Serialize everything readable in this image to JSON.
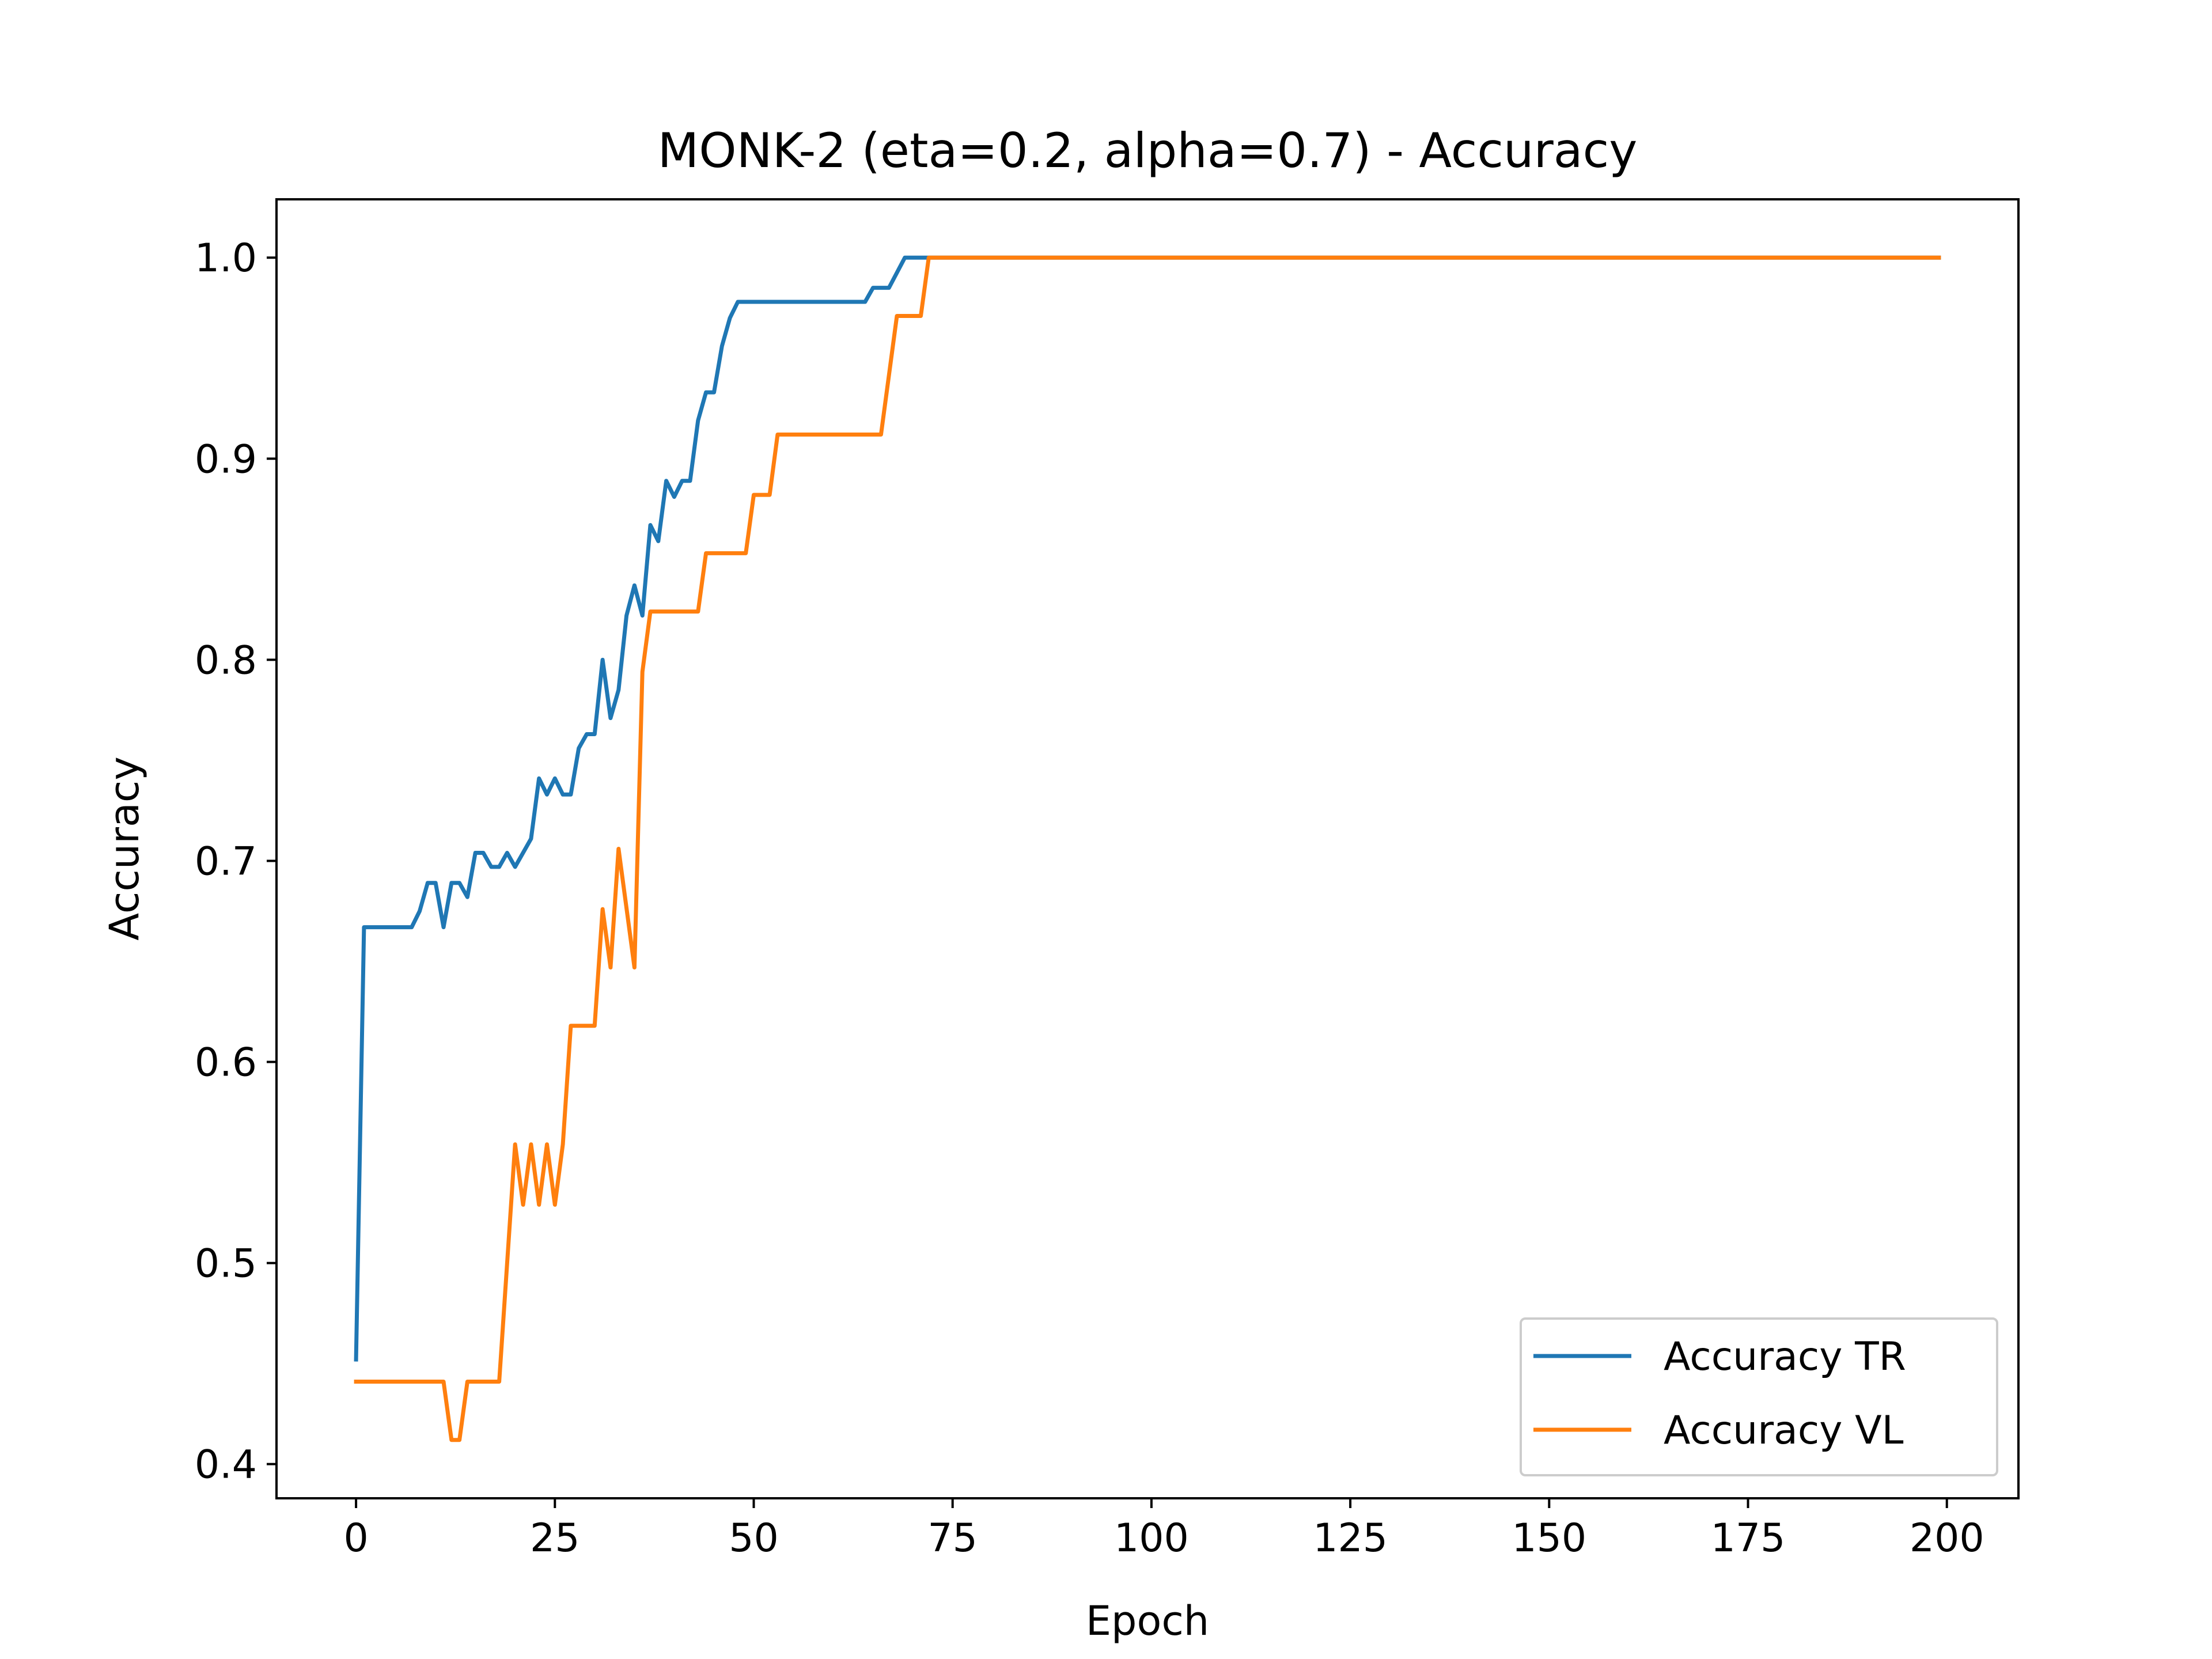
{
  "chart_data": {
    "type": "line",
    "title": "MONK-2 (eta=0.2, alpha=0.7) - Accuracy",
    "xlabel": "Epoch",
    "ylabel": "Accuracy",
    "xlim": [
      -10,
      209
    ],
    "ylim": [
      0.383,
      1.029
    ],
    "xticks": [
      0,
      25,
      50,
      75,
      100,
      125,
      150,
      175,
      200
    ],
    "xtick_labels": [
      "0",
      "25",
      "50",
      "75",
      "100",
      "125",
      "150",
      "175",
      "200"
    ],
    "yticks": [
      0.4,
      0.5,
      0.6,
      0.7,
      0.8,
      0.9,
      1.0
    ],
    "ytick_labels": [
      "0.4",
      "0.5",
      "0.6",
      "0.7",
      "0.8",
      "0.9",
      "1.0"
    ],
    "grid": false,
    "legend_position": "lower-right",
    "series": [
      {
        "name": "Accuracy TR",
        "color": "#1f77b4",
        "points": [
          [
            0,
            0.452
          ],
          [
            1,
            0.667
          ],
          [
            7,
            0.667
          ],
          [
            8,
            0.675
          ],
          [
            9,
            0.689
          ],
          [
            10,
            0.689
          ],
          [
            11,
            0.667
          ],
          [
            12,
            0.689
          ],
          [
            13,
            0.689
          ],
          [
            14,
            0.682
          ],
          [
            15,
            0.704
          ],
          [
            16,
            0.704
          ],
          [
            17,
            0.697
          ],
          [
            18,
            0.697
          ],
          [
            19,
            0.704
          ],
          [
            20,
            0.697
          ],
          [
            22,
            0.711
          ],
          [
            23,
            0.741
          ],
          [
            24,
            0.733
          ],
          [
            25,
            0.741
          ],
          [
            26,
            0.733
          ],
          [
            27,
            0.733
          ],
          [
            28,
            0.756
          ],
          [
            29,
            0.763
          ],
          [
            30,
            0.763
          ],
          [
            31,
            0.8
          ],
          [
            32,
            0.771
          ],
          [
            33,
            0.785
          ],
          [
            34,
            0.822
          ],
          [
            35,
            0.837
          ],
          [
            36,
            0.822
          ],
          [
            37,
            0.867
          ],
          [
            38,
            0.859
          ],
          [
            39,
            0.889
          ],
          [
            40,
            0.881
          ],
          [
            41,
            0.889
          ],
          [
            42,
            0.889
          ],
          [
            43,
            0.919
          ],
          [
            44,
            0.933
          ],
          [
            45,
            0.933
          ],
          [
            46,
            0.956
          ],
          [
            47,
            0.97
          ],
          [
            48,
            0.978
          ],
          [
            64,
            0.978
          ],
          [
            65,
            0.985
          ],
          [
            67,
            0.985
          ],
          [
            69,
            1.0
          ],
          [
            199,
            1.0
          ]
        ]
      },
      {
        "name": "Accuracy VL",
        "color": "#ff7f0e",
        "points": [
          [
            0,
            0.441
          ],
          [
            11,
            0.441
          ],
          [
            12,
            0.412
          ],
          [
            13,
            0.412
          ],
          [
            14,
            0.441
          ],
          [
            18,
            0.441
          ],
          [
            20,
            0.559
          ],
          [
            21,
            0.529
          ],
          [
            22,
            0.559
          ],
          [
            23,
            0.529
          ],
          [
            24,
            0.559
          ],
          [
            25,
            0.529
          ],
          [
            26,
            0.559
          ],
          [
            27,
            0.618
          ],
          [
            30,
            0.618
          ],
          [
            31,
            0.676
          ],
          [
            32,
            0.647
          ],
          [
            33,
            0.706
          ],
          [
            35,
            0.647
          ],
          [
            36,
            0.794
          ],
          [
            37,
            0.824
          ],
          [
            43,
            0.824
          ],
          [
            44,
            0.853
          ],
          [
            49,
            0.853
          ],
          [
            50,
            0.882
          ],
          [
            52,
            0.882
          ],
          [
            53,
            0.912
          ],
          [
            66,
            0.912
          ],
          [
            68,
            0.971
          ],
          [
            71,
            0.971
          ],
          [
            72,
            1.0
          ],
          [
            199,
            1.0
          ]
        ]
      }
    ]
  }
}
